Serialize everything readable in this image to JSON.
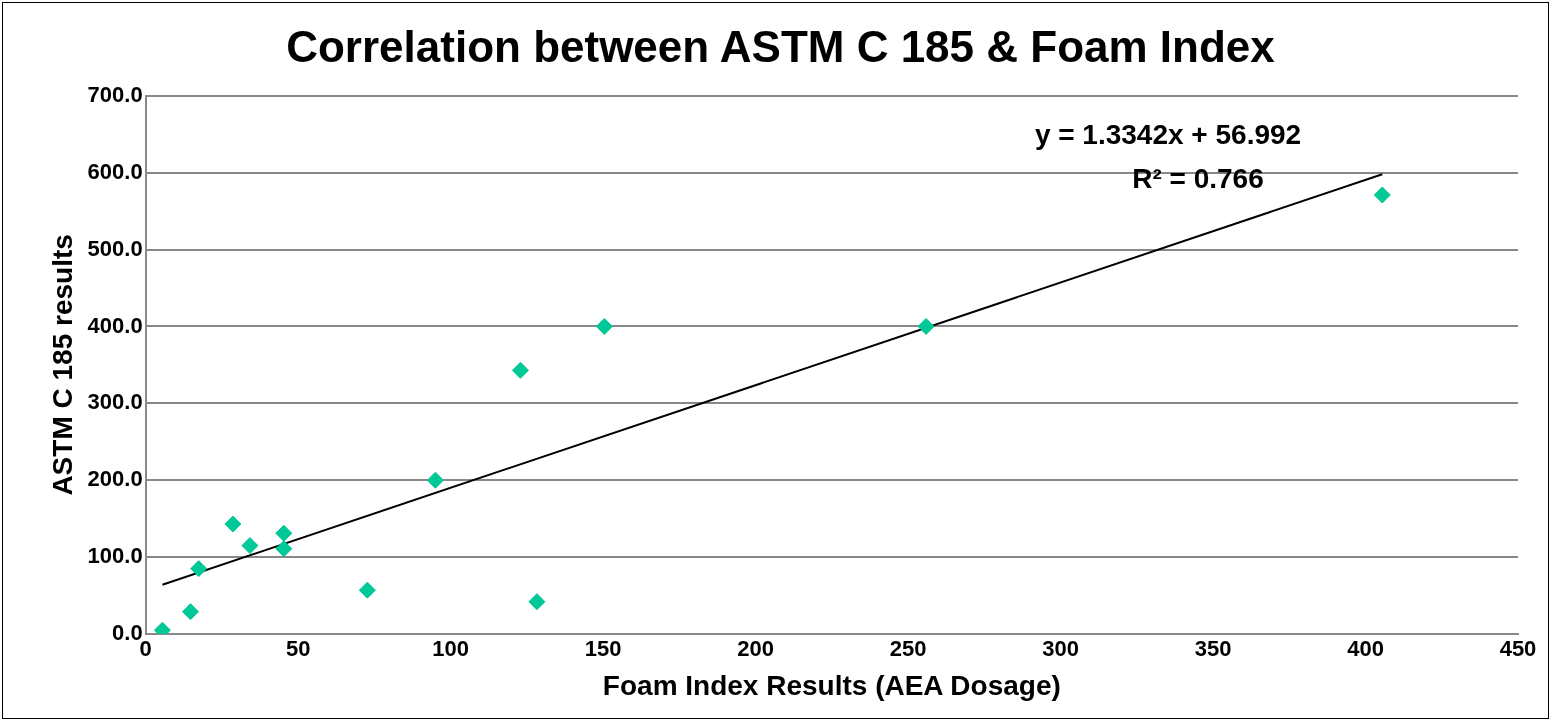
{
  "chart_data": {
    "type": "scatter",
    "title": "Correlation between ASTM C 185 & Foam Index",
    "xlabel": "Foam Index Results (AEA Dosage)",
    "ylabel": "ASTM C 185 results",
    "series": [
      {
        "type": "scatter",
        "color": "#00c896",
        "x": [
          5.5,
          14.7,
          17.4,
          28.6,
          34.2,
          45.3,
          45.3,
          72.7,
          95,
          128.3,
          122.9,
          150.4,
          255.9,
          405.5
        ],
        "values": [
          5,
          29,
          85,
          143,
          115,
          131,
          111,
          57,
          200,
          42,
          343,
          400,
          400,
          571
        ],
        "marker": "diamond"
      },
      {
        "type": "line",
        "color": "#000000",
        "x": [
          5.5,
          405.5
        ],
        "values": [
          64,
          598
        ],
        "marker": "none",
        "line_style": "solid"
      }
    ],
    "xlim": [
      0,
      450
    ],
    "xticks": [
      0,
      50,
      100,
      150,
      200,
      250,
      300,
      350,
      400,
      450
    ],
    "ylim": [
      0,
      700
    ],
    "yticks": [
      {
        "value": 0,
        "label": "0.0"
      },
      {
        "value": 100,
        "label": "100.0"
      },
      {
        "value": 200,
        "label": "200.0"
      },
      {
        "value": 300,
        "label": "300.0"
      },
      {
        "value": 400,
        "label": "400.0"
      },
      {
        "value": 500,
        "label": "500.0"
      },
      {
        "value": 600,
        "label": "600.0"
      },
      {
        "value": 700,
        "label": "700.0"
      }
    ],
    "grid": "y",
    "legend": false,
    "annotations": [
      "y = 1.3342x + 56.992",
      "R² = 0.766"
    ]
  }
}
